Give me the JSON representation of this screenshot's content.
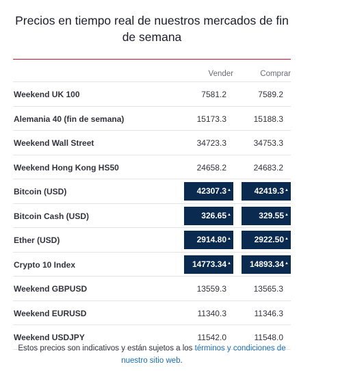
{
  "title": "Precios en tiempo real de nuestros mercados de fin de semana",
  "columns": {
    "sell": "Vender",
    "buy": "Comprar"
  },
  "rows": [
    {
      "name": "Weekend UK 100",
      "sell": "7581.2",
      "buy": "7589.2",
      "highlight": false
    },
    {
      "name": "Alemania 40 (fin de semana)",
      "sell": "15173.3",
      "buy": "15188.3",
      "highlight": false
    },
    {
      "name": "Weekend Wall Street",
      "sell": "34723.3",
      "buy": "34753.3",
      "highlight": false
    },
    {
      "name": "Weekend Hong Kong HS50",
      "sell": "24658.2",
      "buy": "24683.2",
      "highlight": false
    },
    {
      "name": "Bitcoin (USD)",
      "sell": "42307.3",
      "buy": "42419.3",
      "highlight": true
    },
    {
      "name": "Bitcoin Cash (USD)",
      "sell": "326.65",
      "buy": "329.55",
      "highlight": true
    },
    {
      "name": "Ether (USD)",
      "sell": "2914.80",
      "buy": "2922.50",
      "highlight": true
    },
    {
      "name": "Crypto 10 Index",
      "sell": "14773.34",
      "buy": "14893.34",
      "highlight": true
    },
    {
      "name": "Weekend GBPUSD",
      "sell": "13559.3",
      "buy": "13565.3",
      "highlight": false
    },
    {
      "name": "Weekend EURUSD",
      "sell": "11340.3",
      "buy": "11346.3",
      "highlight": false
    },
    {
      "name": "Weekend USDJPY",
      "sell": "11542.0",
      "buy": "11548.0",
      "highlight": false
    }
  ],
  "arrow_glyph": "▲",
  "footer": {
    "text": "Estos precios son indicativos y están sujetos a los ",
    "link": "términos y condiciones de nuestro sitio web",
    "end": "."
  },
  "colors": {
    "accent_line": "#c8102e",
    "chip_bg": "#0b2a50",
    "link": "#1b6fb5"
  }
}
